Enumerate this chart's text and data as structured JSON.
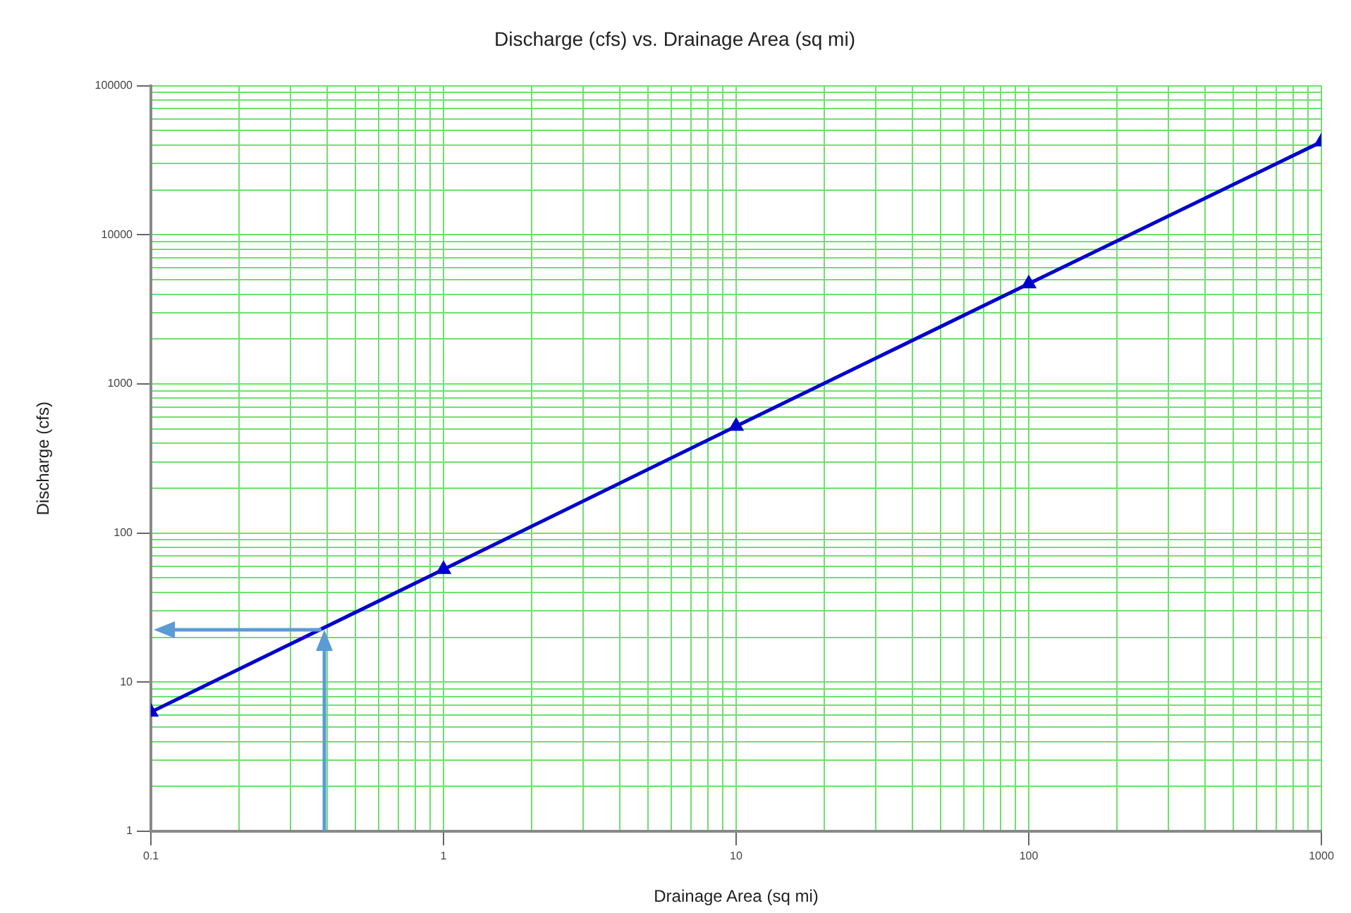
{
  "chart_data": {
    "type": "line",
    "title": "Discharge (cfs) vs. Drainage Area (sq mi)",
    "xlabel": "Drainage Area (sq mi)",
    "ylabel": "Discharge (cfs)",
    "x": [
      0.1,
      1,
      10,
      100,
      1000
    ],
    "series": [
      {
        "color": "#0000cc",
        "values": [
          6.3,
          57,
          520,
          4700,
          42000
        ]
      }
    ],
    "log": "xy",
    "xlim": [
      0.1,
      1000
    ],
    "ylim": [
      1,
      100000
    ],
    "xticks": [
      0.1,
      {
        "value": 0.2,
        "label": null
      },
      {
        "value": 0.3,
        "label": null
      },
      {
        "value": 0.4,
        "label": null
      },
      {
        "value": 0.5,
        "label": null
      },
      {
        "value": 0.6,
        "label": null
      },
      {
        "value": 0.7,
        "label": null
      },
      {
        "value": 0.8,
        "label": null
      },
      {
        "value": 0.9,
        "label": null
      },
      1,
      {
        "value": 2,
        "label": null
      },
      {
        "value": 3,
        "label": null
      },
      {
        "value": 4,
        "label": null
      },
      {
        "value": 5,
        "label": null
      },
      {
        "value": 6,
        "label": null
      },
      {
        "value": 7,
        "label": null
      },
      {
        "value": 8,
        "label": null
      },
      {
        "value": 9,
        "label": null
      },
      10,
      {
        "value": 20,
        "label": null
      },
      {
        "value": 30,
        "label": null
      },
      {
        "value": 40,
        "label": null
      },
      {
        "value": 50,
        "label": null
      },
      {
        "value": 60,
        "label": null
      },
      {
        "value": 70,
        "label": null
      },
      {
        "value": 80,
        "label": null
      },
      {
        "value": 90,
        "label": null
      },
      100,
      {
        "value": 200,
        "label": null
      },
      {
        "value": 300,
        "label": null
      },
      {
        "value": 400,
        "label": null
      },
      {
        "value": 500,
        "label": null
      },
      {
        "value": 600,
        "label": null
      },
      {
        "value": 700,
        "label": null
      },
      {
        "value": 800,
        "label": null
      },
      {
        "value": 900,
        "label": null
      },
      1000
    ],
    "yticks": [
      1,
      {
        "value": 2,
        "label": null
      },
      {
        "value": 3,
        "label": null
      },
      {
        "value": 4,
        "label": null
      },
      {
        "value": 5,
        "label": null
      },
      {
        "value": 6,
        "label": null
      },
      {
        "value": 7,
        "label": null
      },
      {
        "value": 8,
        "label": null
      },
      {
        "value": 9,
        "label": null
      },
      10,
      {
        "value": 20,
        "label": null
      },
      {
        "value": 30,
        "label": null
      },
      {
        "value": 40,
        "label": null
      },
      {
        "value": 50,
        "label": null
      },
      {
        "value": 60,
        "label": null
      },
      {
        "value": 70,
        "label": null
      },
      {
        "value": 80,
        "label": null
      },
      {
        "value": 90,
        "label": null
      },
      100,
      {
        "value": 200,
        "label": null
      },
      {
        "value": 300,
        "label": null
      },
      {
        "value": 400,
        "label": null
      },
      {
        "value": 500,
        "label": null
      },
      {
        "value": 600,
        "label": null
      },
      {
        "value": 700,
        "label": null
      },
      {
        "value": 800,
        "label": null
      },
      {
        "value": 900,
        "label": null
      },
      1000,
      {
        "value": 2000,
        "label": null
      },
      {
        "value": 3000,
        "label": null
      },
      {
        "value": 4000,
        "label": null
      },
      {
        "value": 5000,
        "label": null
      },
      {
        "value": 6000,
        "label": null
      },
      {
        "value": 7000,
        "label": null
      },
      {
        "value": 8000,
        "label": null
      },
      {
        "value": 9000,
        "label": null
      },
      10000,
      {
        "value": 20000,
        "label": null
      },
      {
        "value": 30000,
        "label": null
      },
      {
        "value": 40000,
        "label": null
      },
      {
        "value": 50000,
        "label": null
      },
      {
        "value": 60000,
        "label": null
      },
      {
        "value": 70000,
        "label": null
      },
      {
        "value": 80000,
        "label": null
      },
      {
        "value": 90000,
        "label": null
      },
      100000
    ],
    "grid": true,
    "legend": false,
    "marker": "triangle",
    "line_style": "solid"
  }
}
